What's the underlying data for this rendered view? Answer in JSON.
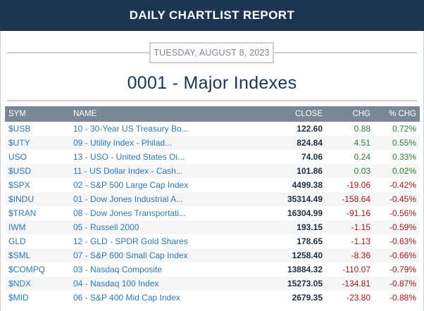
{
  "header": {
    "title": "DAILY CHARTLIST REPORT"
  },
  "report": {
    "date": "TUESDAY, AUGUST 8, 2023",
    "list_title": "0001 - Major Indexes"
  },
  "table": {
    "columns": [
      "SYM",
      "NAME",
      "CLOSE",
      "CHG",
      "% CHG"
    ],
    "rows": [
      {
        "sym": "$USB",
        "name": "10 - 30-Year US Treasury Bo...",
        "close": "122.60",
        "chg": "0.88",
        "pct": "0.72%",
        "dir": "pos"
      },
      {
        "sym": "$UTY",
        "name": "09 - Utility Index - Philad...",
        "close": "824.84",
        "chg": "4.51",
        "pct": "0.55%",
        "dir": "pos"
      },
      {
        "sym": "USO",
        "name": "13 - USO - United States Oi...",
        "close": "74.06",
        "chg": "0.24",
        "pct": "0.33%",
        "dir": "pos"
      },
      {
        "sym": "$USD",
        "name": "11 - US Dollar Index - Cash...",
        "close": "101.86",
        "chg": "0.03",
        "pct": "0.02%",
        "dir": "pos"
      },
      {
        "sym": "$SPX",
        "name": "02 - S&P 500 Large Cap Index",
        "close": "4499.38",
        "chg": "-19.06",
        "pct": "-0.42%",
        "dir": "neg"
      },
      {
        "sym": "$INDU",
        "name": "01 - Dow Jones Industrial A...",
        "close": "35314.49",
        "chg": "-158.64",
        "pct": "-0.45%",
        "dir": "neg"
      },
      {
        "sym": "$TRAN",
        "name": "08 - Dow Jones Transportati...",
        "close": "16304.99",
        "chg": "-91.16",
        "pct": "-0.56%",
        "dir": "neg"
      },
      {
        "sym": "IWM",
        "name": "05 - Russell 2000",
        "close": "193.15",
        "chg": "-1.15",
        "pct": "-0.59%",
        "dir": "neg"
      },
      {
        "sym": "GLD",
        "name": "12 - GLD - SPDR Gold Shares",
        "close": "178.65",
        "chg": "-1.13",
        "pct": "-0.63%",
        "dir": "neg"
      },
      {
        "sym": "$SML",
        "name": "07 - S&P 600 Small Cap Index",
        "close": "1258.40",
        "chg": "-8.36",
        "pct": "-0.66%",
        "dir": "neg"
      },
      {
        "sym": "$COMPQ",
        "name": "03 - Nasdaq Composite",
        "close": "13884.32",
        "chg": "-110.07",
        "pct": "-0.79%",
        "dir": "neg"
      },
      {
        "sym": "$NDX",
        "name": "04 - Nasdaq 100 Index",
        "close": "15273.05",
        "chg": "-134.81",
        "pct": "-0.87%",
        "dir": "neg"
      },
      {
        "sym": "$MID",
        "name": "06 - S&P 400 Mid Cap Index",
        "close": "2679.35",
        "chg": "-23.80",
        "pct": "-0.88%",
        "dir": "neg"
      }
    ]
  },
  "colors": {
    "header_bg": "#1c3553",
    "table_header_bg": "#7a8796",
    "link": "#2a78b5",
    "positive": "#2f7d32",
    "negative": "#a31818"
  }
}
